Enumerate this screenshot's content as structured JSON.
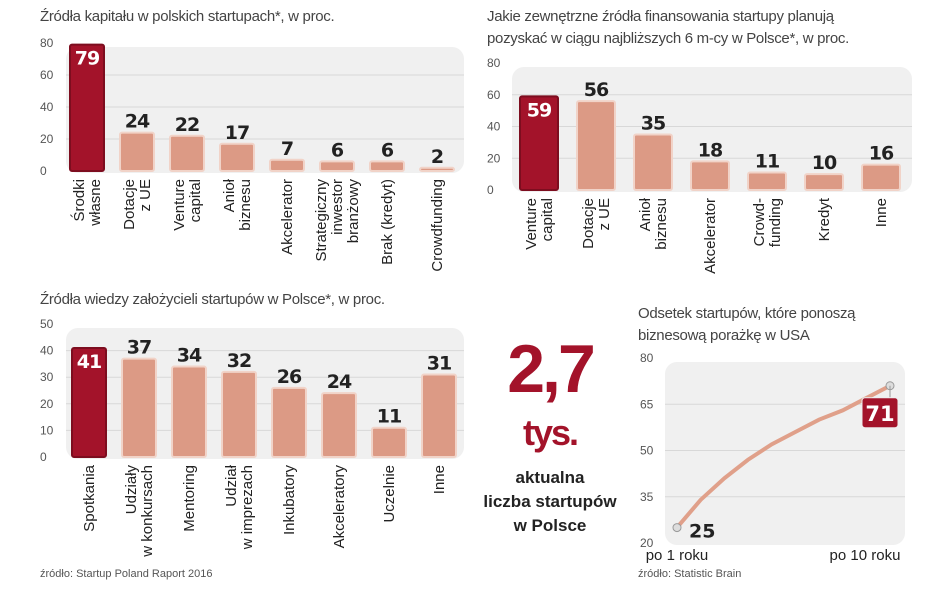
{
  "colors": {
    "highlight": "#a3132a",
    "bar": "#dc9a85",
    "bar_border": "#f1d3c8",
    "panel": "#f0f0f0",
    "grid": "#d8d8d8",
    "line": "#e0a08a"
  },
  "chart_data": [
    {
      "type": "bar",
      "title": "Źródła kapitału w polskich startupach*, w proc.",
      "ylim": [
        0,
        80
      ],
      "yticks": [
        0,
        20,
        40,
        60,
        80
      ],
      "grid": true,
      "categories": [
        "Środki własne",
        "Dotacje z UE",
        "Venture capital",
        "Anioł biznesu",
        "Akcelerator",
        "Strategiczny inwestor branżowy",
        "Brak (kredyt)",
        "Crowdfunding"
      ],
      "labels": [
        [
          "Środki",
          "własne"
        ],
        [
          "Dotacje",
          "z UE"
        ],
        [
          "Venture",
          "capital"
        ],
        [
          "Anioł",
          "biznesu"
        ],
        [
          "Akcelerator"
        ],
        [
          "Strategiczny",
          "inwestor",
          "branżowy"
        ],
        [
          "Brak (kredyt)"
        ],
        [
          "Crowdfunding"
        ]
      ],
      "values": [
        79,
        24,
        22,
        17,
        7,
        6,
        6,
        2
      ],
      "highlight_index": 0
    },
    {
      "type": "bar",
      "title": [
        "Jakie zewnętrzne źródła finansowania startupy planują",
        "pozyskać w ciągu najbliższych 6 m-cy w Polsce*, w proc."
      ],
      "ylim": [
        0,
        80
      ],
      "yticks": [
        0,
        20,
        40,
        60,
        80
      ],
      "grid": true,
      "categories": [
        "Venture capital",
        "Dotacje z UE",
        "Anioł biznesu",
        "Akcelerator",
        "Crowdfunding",
        "Kredyt",
        "Inne"
      ],
      "labels": [
        [
          "Venture",
          "capital"
        ],
        [
          "Dotacje",
          "z UE"
        ],
        [
          "Anioł",
          "biznesu"
        ],
        [
          "Akcelerator"
        ],
        [
          "Crowd-",
          "funding"
        ],
        [
          "Kredyt"
        ],
        [
          "Inne"
        ]
      ],
      "values": [
        59,
        56,
        35,
        18,
        11,
        10,
        16
      ],
      "highlight_index": 0
    },
    {
      "type": "bar",
      "title": "Źródła wiedzy założycieli startupów w Polsce*, w proc.",
      "ylim": [
        0,
        50
      ],
      "yticks": [
        0,
        10,
        20,
        30,
        40,
        50
      ],
      "grid": true,
      "categories": [
        "Spotkania",
        "Udziały w konkursach",
        "Mentoring",
        "Udział w imprezach",
        "Inkubatory",
        "Akceleratory",
        "Uczelnie",
        "Inne"
      ],
      "labels": [
        [
          "Spotkania"
        ],
        [
          "Udziały",
          "w konkursach"
        ],
        [
          "Mentoring"
        ],
        [
          "Udział",
          "w imprezach"
        ],
        [
          "Inkubatory"
        ],
        [
          "Akceleratory"
        ],
        [
          "Uczelnie"
        ],
        [
          "Inne"
        ]
      ],
      "values": [
        41,
        37,
        34,
        32,
        26,
        24,
        11,
        31
      ],
      "highlight_index": 0
    },
    {
      "type": "line",
      "title": [
        "Odsetek startupów, które ponoszą",
        "biznesową porażkę w USA"
      ],
      "ylim": [
        20,
        80
      ],
      "yticks": [
        20,
        35,
        50,
        65,
        80
      ],
      "grid": true,
      "x": [
        1,
        2,
        3,
        4,
        5,
        6,
        7,
        8,
        9,
        10
      ],
      "values": [
        25,
        34,
        41,
        47,
        52,
        56,
        60,
        63,
        67,
        71
      ],
      "xticklabels": [
        "po 1 roku",
        "po 10 roku"
      ],
      "labeled_points": [
        {
          "x": 1,
          "y": 25
        },
        {
          "x": 10,
          "y": 71
        }
      ]
    }
  ],
  "headline": {
    "value": "2,7",
    "unit": "tys.",
    "caption": [
      "aktualna",
      "liczba startupów",
      "w Polsce"
    ]
  },
  "sources": {
    "left": "źródło: Startup Poland Raport 2016",
    "right": "źródło: Statistic Brain"
  }
}
